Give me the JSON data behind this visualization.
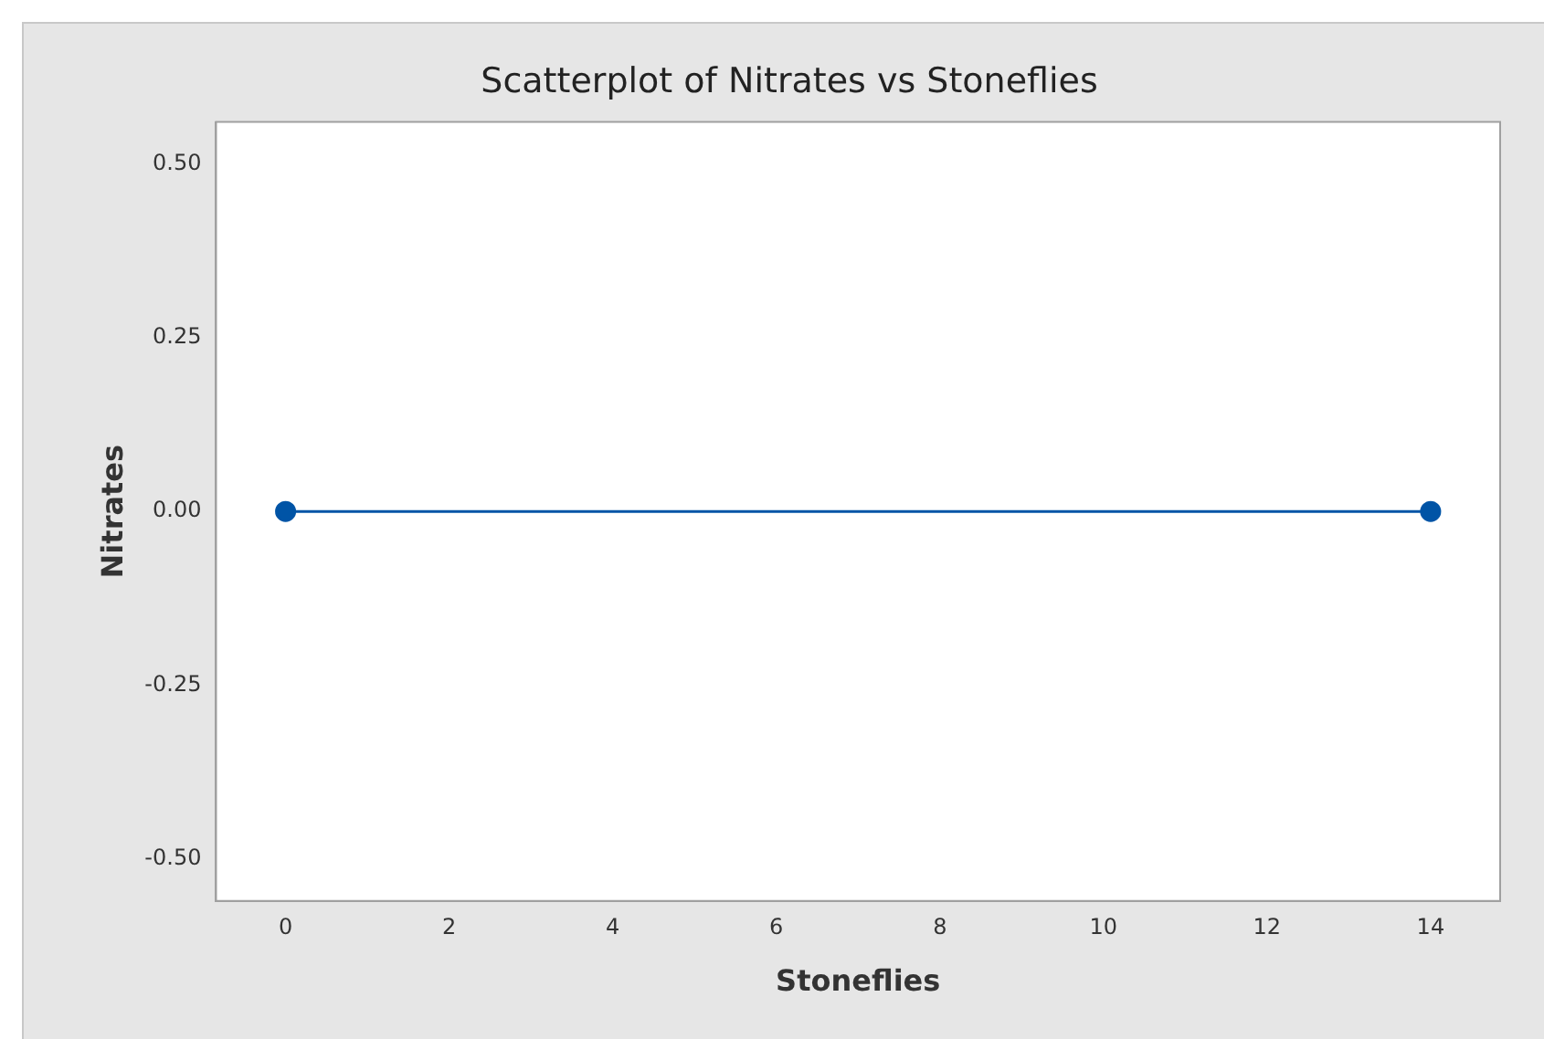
{
  "chart_data": {
    "type": "line",
    "title": "Scatterplot of Nitrates vs Stoneflies",
    "xlabel": "Stoneflies",
    "ylabel": "Nitrates",
    "x": [
      0,
      14
    ],
    "series": [
      {
        "color": "#0054a6",
        "values": [
          0,
          0
        ]
      }
    ],
    "marker": "circle",
    "line_style": "solid",
    "xlim": [
      -0.85,
      14.85
    ],
    "xticks": [
      0,
      2,
      4,
      6,
      8,
      10,
      12,
      14
    ],
    "ylim": [
      -0.56,
      0.56
    ],
    "yticks": [
      {
        "value": -0.5,
        "label": "-0.50"
      },
      {
        "value": -0.25,
        "label": "-0.25"
      },
      {
        "value": 0,
        "label": "0.00"
      },
      {
        "value": 0.25,
        "label": "0.25"
      },
      {
        "value": 0.5,
        "label": "0.50"
      }
    ],
    "grid": false,
    "legend": false
  }
}
